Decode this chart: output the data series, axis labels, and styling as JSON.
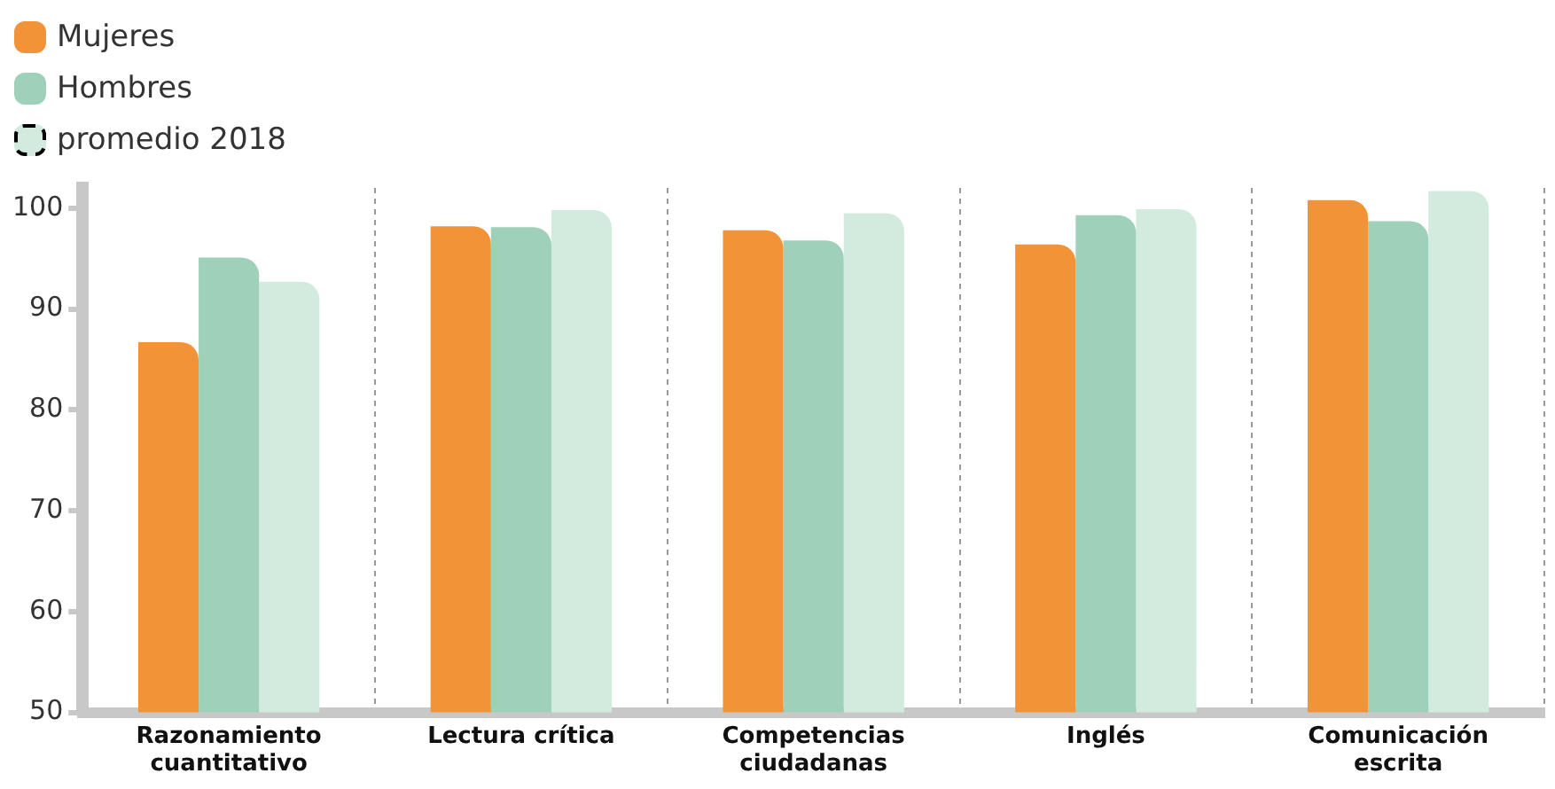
{
  "chart_data": {
    "type": "bar",
    "categories": [
      "Razonamiento cuantitativo",
      "Lectura crítica",
      "Competencias ciudadanas",
      "Inglés",
      "Comunicación escrita"
    ],
    "series": [
      {
        "name": "Mujeres",
        "color": "#f39337",
        "values": [
          86.7,
          98.2,
          97.8,
          96.4,
          100.8
        ]
      },
      {
        "name": "Hombres",
        "color": "#9fd1ba",
        "values": [
          95.1,
          98.1,
          96.8,
          99.3,
          98.7
        ]
      },
      {
        "name": "promedio 2018",
        "color": "#d3ebdf",
        "line_style": "dashed",
        "values": [
          92.7,
          99.8,
          99.5,
          99.9,
          101.7
        ]
      }
    ],
    "ylim": [
      50,
      102
    ],
    "yticks": [
      50,
      60,
      70,
      80,
      90,
      100
    ],
    "grid": "x",
    "legend": "top left"
  }
}
